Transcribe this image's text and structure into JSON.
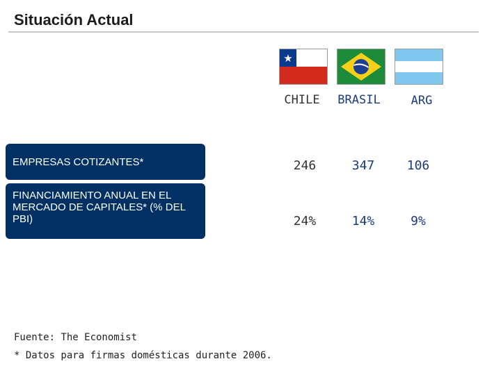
{
  "header": {
    "title": "Situación Actual"
  },
  "flags": [
    {
      "icon": "chile-flag-icon"
    },
    {
      "icon": "brazil-flag-icon"
    },
    {
      "icon": "argentina-flag-icon"
    }
  ],
  "columns": [
    "CHILE",
    "BRASIL",
    "ARG"
  ],
  "rows": [
    {
      "label": "EMPRESAS COTIZANTES*",
      "values": [
        "246",
        "347",
        "106"
      ]
    },
    {
      "label": "FINANCIAMIENTO ANUAL EN EL MERCADO DE CAPITALES* (% DEL PBI)",
      "values": [
        "24%",
        "14%",
        "9%"
      ]
    }
  ],
  "footer": {
    "source": "Fuente: The Economist",
    "note": "* Datos para firmas domésticas durante 2006."
  },
  "colors": {
    "label_box": "#003064",
    "value_text": "#1a3a7a",
    "chile_red": "#d52b1e",
    "chile_blue": "#0b3a8c",
    "brazil_green": "#1e8b3a",
    "brazil_yellow": "#f7d117",
    "argentina_blue": "#80c7ee"
  }
}
